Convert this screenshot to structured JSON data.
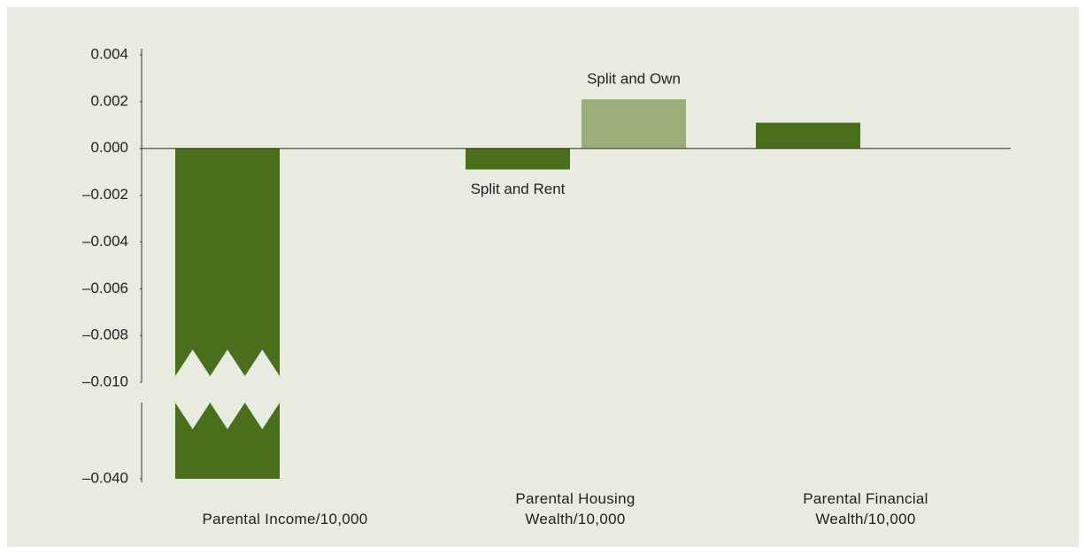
{
  "chart_data": {
    "type": "bar",
    "categories": [
      "Parental Income/10,000",
      "Parental Housing\nWealth/10,000",
      "Parental Financial\nWealth/10,000"
    ],
    "series": [
      {
        "name": "Split and Rent",
        "color": "#4a6e1b",
        "values": [
          -0.04,
          -0.0009,
          0.0011
        ]
      },
      {
        "name": "Split and Own",
        "color": "#9cae7a",
        "values": [
          null,
          0.0021,
          null
        ]
      }
    ],
    "ylim": [
      -0.04,
      0.004
    ],
    "yticks": [
      0.004,
      0.002,
      {
        "value": 0,
        "label": "0.000"
      },
      {
        "value": -0.002,
        "label": "–0.002"
      },
      {
        "value": -0.004,
        "label": "–0.004"
      },
      {
        "value": -0.006,
        "label": "–0.006"
      },
      {
        "value": -0.008,
        "label": "–0.008"
      },
      {
        "value": -0.01,
        "label": "–0.010"
      },
      {
        "value": -0.04,
        "label": "–0.040"
      }
    ],
    "axis_break": true
  }
}
